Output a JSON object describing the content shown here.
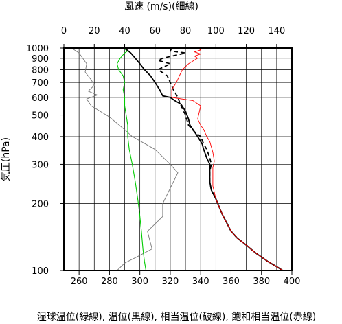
{
  "chart_data": {
    "type": "line",
    "title": "",
    "top_axis": {
      "label": "風速 (m/s)(細線)",
      "ticks": [
        0,
        20,
        40,
        60,
        80,
        100,
        120,
        140
      ],
      "range": [
        0,
        150
      ]
    },
    "bottom_axis": {
      "label": "湿球温位(緑線), 温位(黒線), 相当温位(破線), 飽和相当温位(赤線)",
      "ticks": [
        260,
        280,
        300,
        320,
        340,
        360,
        380,
        400
      ],
      "range": [
        250,
        400
      ]
    },
    "y_axis": {
      "label": "気圧(hPa)",
      "scale": "log",
      "inverted": true,
      "range": [
        1000,
        100
      ],
      "ticks": [
        100,
        200,
        300,
        400,
        500,
        600,
        700,
        800,
        900,
        1000
      ]
    },
    "grid": true,
    "series": [
      {
        "name": "風速",
        "axis": "top",
        "color": "#777777",
        "style": "thin",
        "points": [
          [
            5,
            1000
          ],
          [
            10,
            950
          ],
          [
            15,
            850
          ],
          [
            14,
            780
          ],
          [
            18,
            720
          ],
          [
            20,
            680
          ],
          [
            16,
            640
          ],
          [
            22,
            615
          ],
          [
            15,
            590
          ],
          [
            18,
            550
          ],
          [
            30,
            490
          ],
          [
            40,
            430
          ],
          [
            45,
            400
          ],
          [
            60,
            350
          ],
          [
            70,
            300
          ],
          [
            75,
            275
          ],
          [
            72,
            250
          ],
          [
            65,
            200
          ],
          [
            65,
            175
          ],
          [
            55,
            150
          ],
          [
            58,
            125
          ],
          [
            48,
            115
          ],
          [
            40,
            108
          ],
          [
            35,
            100
          ]
        ]
      },
      {
        "name": "湿球温位",
        "axis": "bottom",
        "color": "#00cc00",
        "style": "solid",
        "points": [
          [
            289,
            1000
          ],
          [
            292,
            970
          ],
          [
            290,
            950
          ],
          [
            287,
            900
          ],
          [
            285,
            850
          ],
          [
            286,
            800
          ],
          [
            289,
            750
          ],
          [
            290,
            700
          ],
          [
            289,
            650
          ],
          [
            290,
            600
          ],
          [
            290,
            550
          ],
          [
            291,
            500
          ],
          [
            292,
            450
          ],
          [
            292,
            400
          ],
          [
            293,
            350
          ],
          [
            295,
            300
          ],
          [
            297,
            250
          ],
          [
            299,
            200
          ],
          [
            300,
            175
          ],
          [
            301,
            150
          ],
          [
            302,
            125
          ],
          [
            303,
            110
          ],
          [
            304,
            100
          ]
        ]
      },
      {
        "name": "温位",
        "axis": "bottom",
        "color": "#000000",
        "style": "solid",
        "points": [
          [
            290,
            1000
          ],
          [
            294,
            950
          ],
          [
            297,
            900
          ],
          [
            300,
            850
          ],
          [
            303,
            800
          ],
          [
            307,
            750
          ],
          [
            310,
            700
          ],
          [
            313,
            650
          ],
          [
            315,
            610
          ],
          [
            320,
            600
          ],
          [
            323,
            580
          ],
          [
            327,
            560
          ],
          [
            330,
            520
          ],
          [
            332,
            480
          ],
          [
            333,
            450
          ],
          [
            336,
            420
          ],
          [
            338,
            400
          ],
          [
            341,
            370
          ],
          [
            342,
            350
          ],
          [
            344,
            320
          ],
          [
            346,
            300
          ],
          [
            346,
            280
          ],
          [
            346,
            250
          ],
          [
            347,
            230
          ],
          [
            350,
            210
          ],
          [
            354,
            180
          ],
          [
            360,
            150
          ],
          [
            364,
            140
          ],
          [
            370,
            130
          ],
          [
            376,
            120
          ],
          [
            384,
            110
          ],
          [
            392,
            102
          ],
          [
            394,
            100
          ]
        ]
      },
      {
        "name": "相当温位",
        "axis": "bottom",
        "color": "#000000",
        "style": "dashed",
        "points": [
          [
            321,
            1000
          ],
          [
            320,
            970
          ],
          [
            330,
            950
          ],
          [
            315,
            900
          ],
          [
            312,
            880
          ],
          [
            320,
            850
          ],
          [
            312,
            800
          ],
          [
            318,
            750
          ],
          [
            320,
            700
          ],
          [
            322,
            650
          ],
          [
            325,
            600
          ],
          [
            327,
            550
          ],
          [
            330,
            500
          ],
          [
            332,
            450
          ],
          [
            336,
            420
          ],
          [
            340,
            400
          ],
          [
            342,
            370
          ],
          [
            344,
            350
          ],
          [
            346,
            320
          ],
          [
            347,
            300
          ],
          [
            346,
            280
          ],
          [
            346,
            250
          ],
          [
            347,
            230
          ],
          [
            350,
            210
          ],
          [
            354,
            180
          ],
          [
            360,
            150
          ],
          [
            364,
            140
          ],
          [
            370,
            130
          ],
          [
            376,
            120
          ],
          [
            384,
            110
          ],
          [
            392,
            102
          ],
          [
            394,
            100
          ]
        ]
      },
      {
        "name": "飽和相当温位",
        "axis": "bottom",
        "color": "#ff0000",
        "style": "thin",
        "points": [
          [
            338,
            1000
          ],
          [
            340,
            980
          ],
          [
            336,
            960
          ],
          [
            340,
            940
          ],
          [
            336,
            920
          ],
          [
            338,
            900
          ],
          [
            332,
            850
          ],
          [
            328,
            800
          ],
          [
            326,
            750
          ],
          [
            324,
            700
          ],
          [
            321,
            650
          ],
          [
            321,
            600
          ],
          [
            335,
            580
          ],
          [
            340,
            550
          ],
          [
            338,
            480
          ],
          [
            340,
            450
          ],
          [
            342,
            430
          ],
          [
            344,
            400
          ],
          [
            346,
            380
          ],
          [
            348,
            340
          ],
          [
            349,
            310
          ],
          [
            348,
            290
          ],
          [
            348,
            260
          ],
          [
            348,
            240
          ],
          [
            350,
            210
          ],
          [
            354,
            180
          ],
          [
            360,
            150
          ],
          [
            364,
            140
          ],
          [
            370,
            130
          ],
          [
            376,
            120
          ],
          [
            384,
            110
          ],
          [
            392,
            102
          ],
          [
            394,
            100
          ]
        ]
      }
    ]
  }
}
